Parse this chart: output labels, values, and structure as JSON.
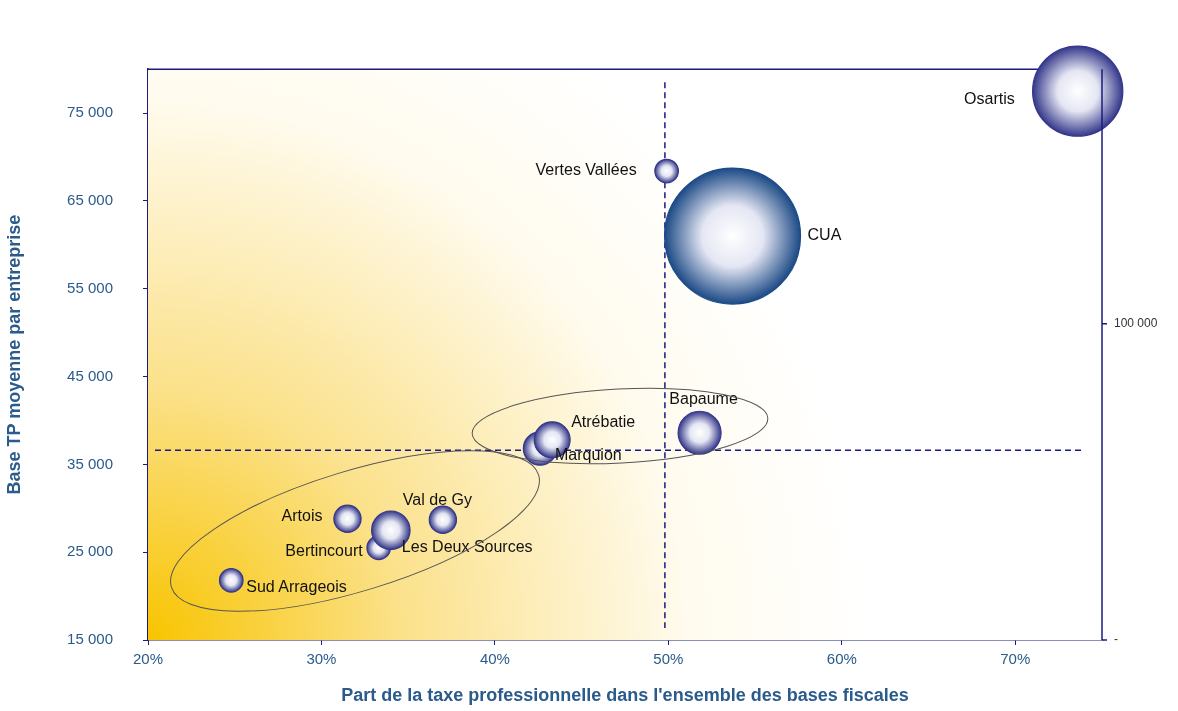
{
  "chart_data": {
    "type": "bubble",
    "xlabel": "Part de la taxe professionnelle dans l'ensemble des bases fiscales",
    "ylabel": "Base TP moyenne par entreprise",
    "series": [
      {
        "name": "Osartis",
        "color": "#35388a",
        "x": [
          73.6
        ],
        "values": [
          77500
        ],
        "sizes": [
          0.44
        ]
      },
      {
        "name": "Vertes Vallées",
        "color": "#35388a",
        "x": [
          49.9
        ],
        "values": [
          68400
        ],
        "sizes": [
          0.03
        ]
      },
      {
        "name": "CUA",
        "color": "#1c4a86",
        "x": [
          53.7
        ],
        "values": [
          61000
        ],
        "sizes": [
          1
        ]
      },
      {
        "name": "Bapaume",
        "color": "#35388a",
        "x": [
          51.8
        ],
        "values": [
          38600
        ],
        "sizes": [
          0.1
        ]
      },
      {
        "name": "Atrébatie",
        "color": "#35388a",
        "x": [
          43.3
        ],
        "values": [
          37800
        ],
        "sizes": [
          0.07
        ]
      },
      {
        "name": "Marquion",
        "color": "#35388a",
        "x": [
          42.6
        ],
        "values": [
          36800
        ],
        "sizes": [
          0.06
        ]
      },
      {
        "name": "Val de Gy",
        "color": "#35388a",
        "x": [
          37.0
        ],
        "values": [
          28700
        ],
        "sizes": [
          0.04
        ]
      },
      {
        "name": "Artois",
        "color": "#35388a",
        "x": [
          31.5
        ],
        "values": [
          28800
        ],
        "sizes": [
          0.04
        ]
      },
      {
        "name": "Les Deux Sources",
        "color": "#35388a",
        "x": [
          34.0
        ],
        "values": [
          27500
        ],
        "sizes": [
          0.08
        ]
      },
      {
        "name": "Bertincourt",
        "color": "#35388a",
        "x": [
          33.3
        ],
        "values": [
          25500
        ],
        "sizes": [
          0.03
        ]
      },
      {
        "name": "Sud Arrageois",
        "color": "#35388a",
        "x": [
          24.8
        ],
        "values": [
          21800
        ],
        "sizes": [
          0.03
        ]
      }
    ],
    "xlim": [
      20,
      75
    ],
    "xticks": [
      {
        "value": 20,
        "label": "20%"
      },
      {
        "value": 30,
        "label": "30%"
      },
      {
        "value": 40,
        "label": "40%"
      },
      {
        "value": 50,
        "label": "50%"
      },
      {
        "value": 60,
        "label": "60%"
      },
      {
        "value": 70,
        "label": "70%"
      }
    ],
    "ylim": [
      15000,
      80000
    ],
    "yticks": [
      {
        "value": 15000,
        "label": "15 000"
      },
      {
        "value": 25000,
        "label": "25 000"
      },
      {
        "value": 35000,
        "label": "35 000"
      },
      {
        "value": 45000,
        "label": "45 000"
      },
      {
        "value": 55000,
        "label": "55 000"
      },
      {
        "value": 65000,
        "label": "65 000"
      },
      {
        "value": 75000,
        "label": "75 000"
      }
    ],
    "annotations": [
      "100 000",
      "-"
    ],
    "ref_lines": [
      {
        "axis": "x",
        "value": 49.8,
        "color": "#1a1a80",
        "line_style": "dashed"
      },
      {
        "axis": "y",
        "value": 36600,
        "color": "#1a1a80",
        "line_style": "dashed"
      }
    ],
    "grid": false,
    "legend": false
  }
}
